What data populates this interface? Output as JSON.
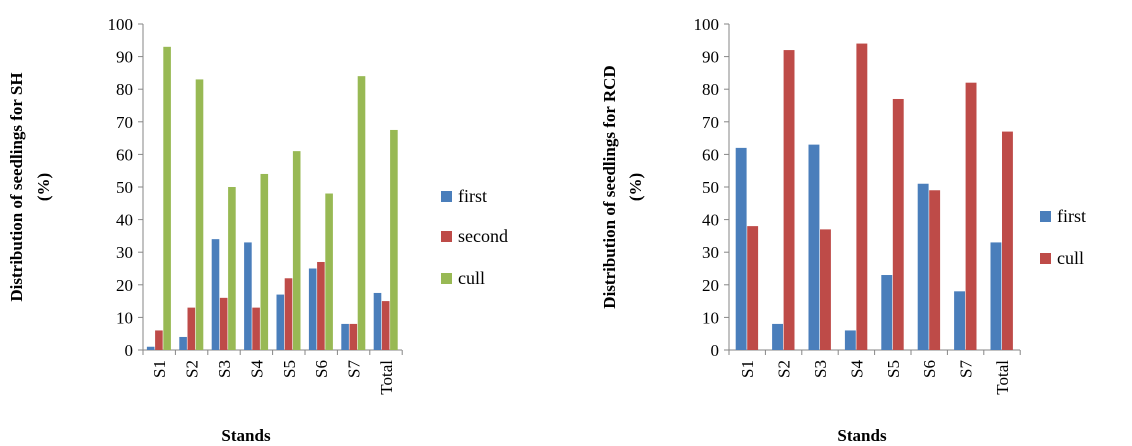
{
  "chart_data": [
    {
      "type": "bar",
      "title": "",
      "xlabel": "Stands",
      "ylabel": "Distribution  of seedlings for SH (%)",
      "ylabel_lines": [
        "Distribution  of seedlings for SH",
        "(%)"
      ],
      "ylim": [
        0,
        100
      ],
      "yticks": [
        0,
        10,
        20,
        30,
        40,
        50,
        60,
        70,
        80,
        90,
        100
      ],
      "grid": false,
      "legend_position": "right",
      "categories": [
        "S1",
        "S2",
        "S3",
        "S4",
        "S5",
        "S6",
        "S7",
        "Total"
      ],
      "series": [
        {
          "name": "first",
          "color": "#4a7ebb",
          "values": [
            1,
            4,
            34,
            33,
            17,
            25,
            8,
            17.5
          ]
        },
        {
          "name": "second",
          "color": "#be4b48",
          "values": [
            6,
            13,
            16,
            13,
            22,
            27,
            8,
            15
          ]
        },
        {
          "name": "cull",
          "color": "#98b954",
          "values": [
            93,
            83,
            50,
            54,
            61,
            48,
            84,
            67.5
          ]
        }
      ]
    },
    {
      "type": "bar",
      "title": "",
      "xlabel": "Stands",
      "ylabel": "Distribution  of seedlings for RCD (%)",
      "ylabel_lines": [
        "Distribution  of seedlings for RCD",
        "(%)"
      ],
      "ylim": [
        0,
        100
      ],
      "yticks": [
        0,
        10,
        20,
        30,
        40,
        50,
        60,
        70,
        80,
        90,
        100
      ],
      "grid": false,
      "legend_position": "right",
      "categories": [
        "S1",
        "S2",
        "S3",
        "S4",
        "S5",
        "S6",
        "S7",
        "Total"
      ],
      "series": [
        {
          "name": "first",
          "color": "#4a7ebb",
          "values": [
            62,
            8,
            63,
            6,
            23,
            51,
            18,
            33
          ]
        },
        {
          "name": "cull",
          "color": "#be4b48",
          "values": [
            38,
            92,
            37,
            94,
            77,
            49,
            82,
            67
          ]
        }
      ]
    }
  ]
}
